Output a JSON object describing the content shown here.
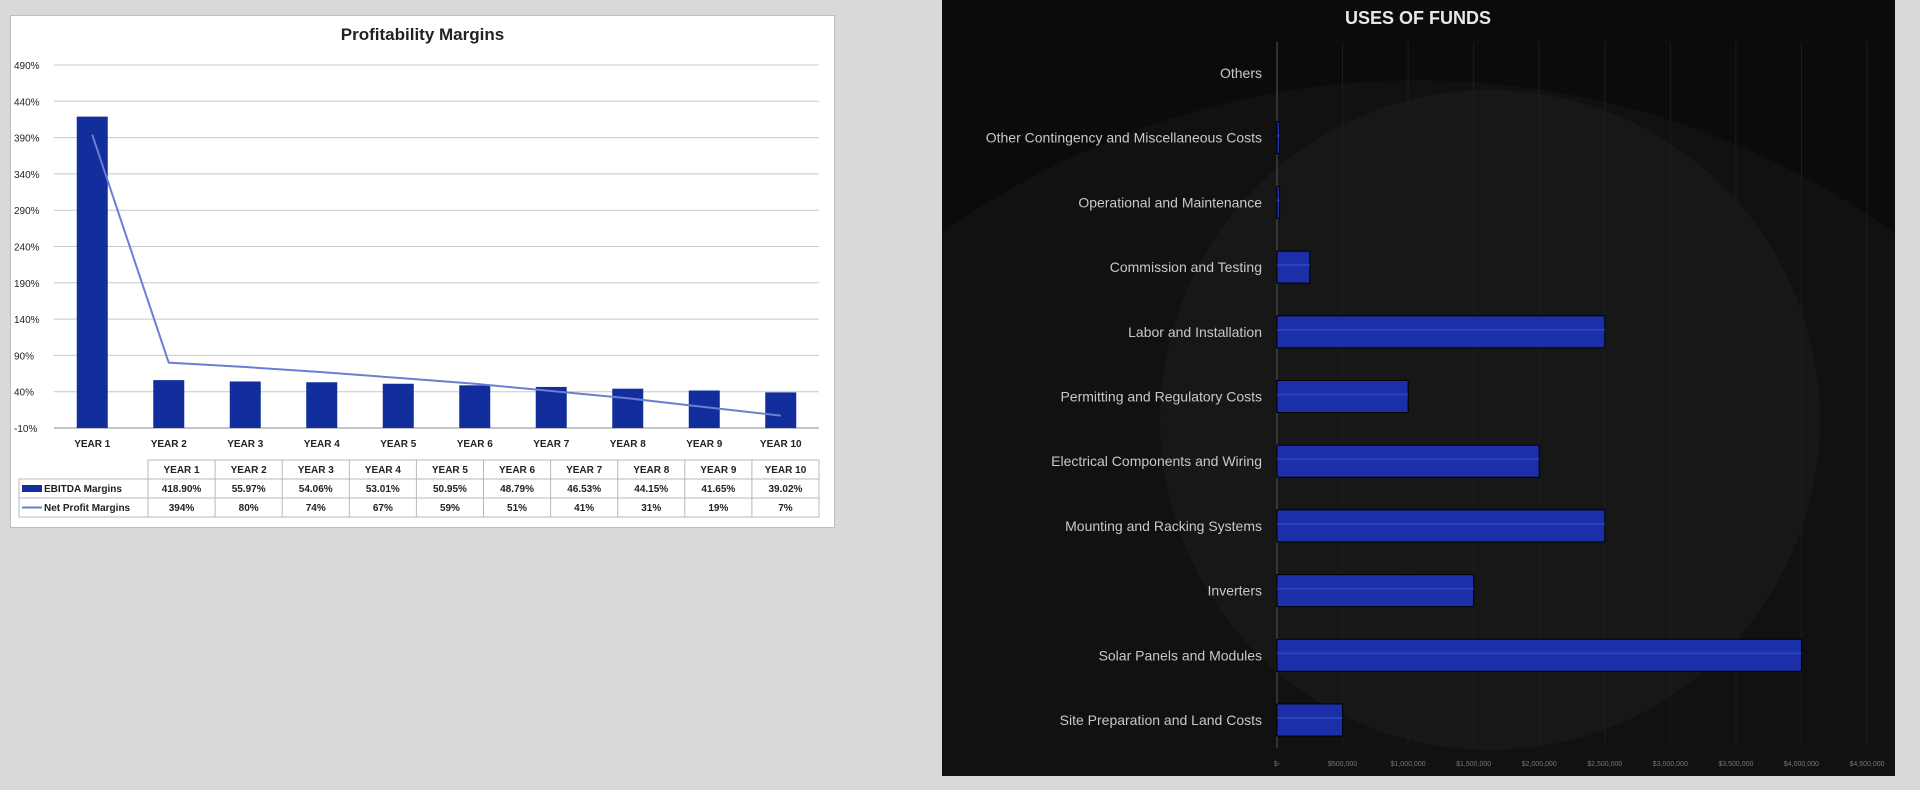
{
  "chart_data": [
    {
      "type": "bar",
      "title": "Profitability Margins",
      "categories": [
        "YEAR 1",
        "YEAR 2",
        "YEAR 3",
        "YEAR 4",
        "YEAR 5",
        "YEAR 6",
        "YEAR 7",
        "YEAR 8",
        "YEAR 9",
        "YEAR 10"
      ],
      "ylim": [
        -10,
        490
      ],
      "yticks": [
        "-10%",
        "40%",
        "90%",
        "140%",
        "190%",
        "240%",
        "290%",
        "340%",
        "390%",
        "440%",
        "490%"
      ],
      "grid": true,
      "legend": "data-table",
      "series": [
        {
          "name": "EBITDA Margins",
          "type": "bar",
          "color": "#112e9c",
          "values": [
            418.9,
            55.97,
            54.06,
            53.01,
            50.95,
            48.79,
            46.53,
            44.15,
            41.65,
            39.02
          ],
          "labels": [
            "418.90%",
            "55.97%",
            "54.06%",
            "53.01%",
            "50.95%",
            "48.79%",
            "46.53%",
            "44.15%",
            "41.65%",
            "39.02%"
          ]
        },
        {
          "name": "Net Profit Margins",
          "type": "line",
          "color": "#6b7fd0",
          "values": [
            394,
            80,
            74,
            67,
            59,
            51,
            41,
            31,
            19,
            7
          ],
          "labels": [
            "394%",
            "80%",
            "74%",
            "67%",
            "59%",
            "51%",
            "41%",
            "31%",
            "19%",
            "7%"
          ]
        }
      ]
    },
    {
      "type": "bar",
      "orientation": "horizontal",
      "title": "USES OF FUNDS",
      "categories": [
        "Others",
        "Other Contingency and Miscellaneous Costs",
        "Operational and Maintenance",
        "Commission and Testing",
        "Labor and Installation",
        "Permitting and Regulatory Costs",
        "Electrical Components and Wiring",
        "Mounting and Racking Systems",
        "Inverters",
        "Solar Panels and Modules",
        "Site Preparation and Land Costs"
      ],
      "values": [
        0,
        20000,
        20000,
        250000,
        2500000,
        1000000,
        2000000,
        2500000,
        1500000,
        4000000,
        500000
      ],
      "xlim": [
        0,
        4500000
      ],
      "xticks": [
        "$-",
        "$500,000",
        "$1,000,000",
        "$1,500,000",
        "$2,000,000",
        "$2,500,000",
        "$3,000,000",
        "$3,500,000",
        "$4,000,000",
        "$4,500,000"
      ],
      "color": "#1a2fa8",
      "background": "#0b0b0b"
    }
  ]
}
